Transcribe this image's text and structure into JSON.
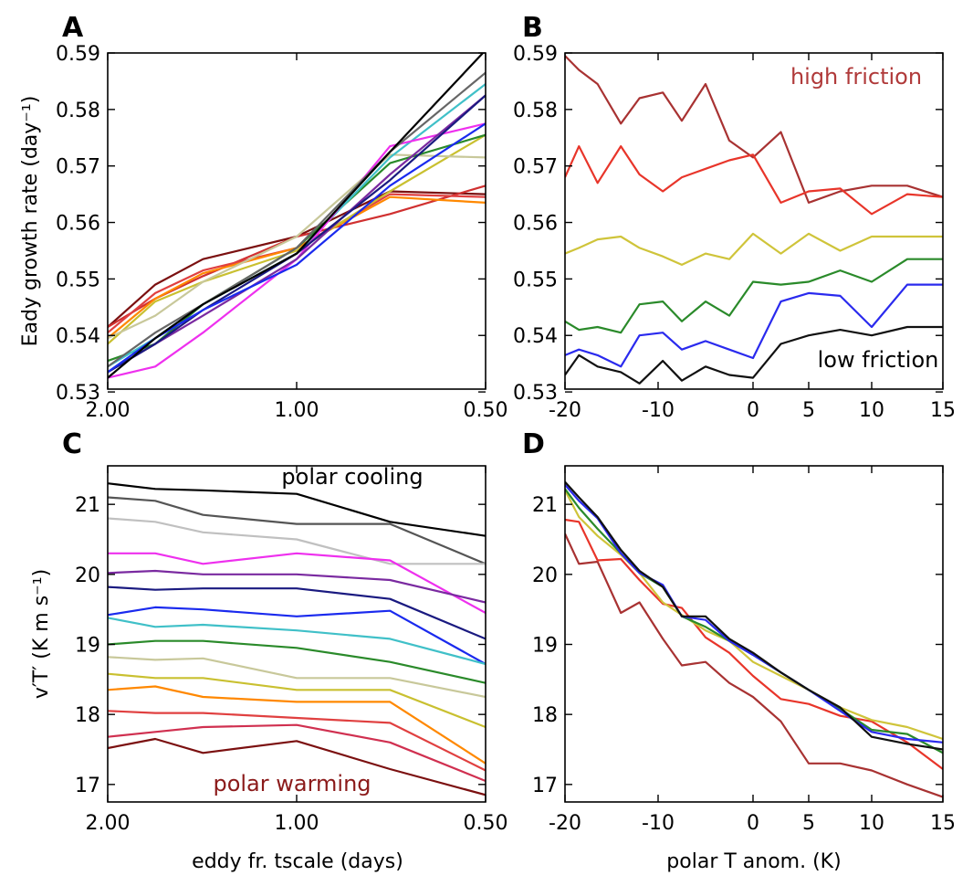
{
  "chart_data": [
    {
      "panel_label": "A",
      "type": "line",
      "x_tick_labels": [
        "2.00",
        "1.00",
        "0.50"
      ],
      "y_tick_labels": [
        "0.53",
        "0.54",
        "0.55",
        "0.56",
        "0.57",
        "0.58",
        "0.59"
      ],
      "xlabel": "",
      "ylabel": "Eady growth rate (day⁻¹)",
      "x_scale": "log",
      "xlim": [
        2.0,
        0.5
      ],
      "ylim": [
        0.5305,
        0.59
      ],
      "x": [
        2.0,
        1.68,
        1.41,
        1.0,
        0.71,
        0.5
      ],
      "annotations": [],
      "series": [
        {
          "color": "#7b1010",
          "values": [
            0.5415,
            0.549,
            0.5535,
            0.5575,
            0.5655,
            0.565
          ]
        },
        {
          "color": "#d03030",
          "values": [
            0.5415,
            0.5465,
            0.5505,
            0.5575,
            0.5615,
            0.5665
          ]
        },
        {
          "color": "#e04040",
          "values": [
            0.5405,
            0.5475,
            0.5515,
            0.5555,
            0.565,
            0.5645
          ]
        },
        {
          "color": "#ff8800",
          "values": [
            0.5395,
            0.5465,
            0.551,
            0.5555,
            0.5645,
            0.5635
          ]
        },
        {
          "color": "#c9c030",
          "values": [
            0.5385,
            0.546,
            0.5495,
            0.555,
            0.5655,
            0.5755
          ]
        },
        {
          "color": "#c8c89a",
          "values": [
            0.5395,
            0.5435,
            0.5495,
            0.5575,
            0.572,
            0.5715
          ]
        },
        {
          "color": "#2a8a2a",
          "values": [
            0.5355,
            0.5385,
            0.5455,
            0.5555,
            0.5705,
            0.5755
          ]
        },
        {
          "color": "#40c0c8",
          "values": [
            0.5345,
            0.5395,
            0.5455,
            0.5545,
            0.5715,
            0.5845
          ]
        },
        {
          "color": "#ee30ee",
          "values": [
            0.5325,
            0.5345,
            0.5405,
            0.5535,
            0.5735,
            0.5775
          ]
        },
        {
          "color": "#7a2aa0",
          "values": [
            0.5335,
            0.5385,
            0.5435,
            0.5535,
            0.5685,
            0.5825
          ]
        },
        {
          "color": "#1a1a80",
          "values": [
            0.5335,
            0.5385,
            0.5445,
            0.5545,
            0.5675,
            0.5825
          ]
        },
        {
          "color": "#1a2aee",
          "values": [
            0.5335,
            0.5395,
            0.5445,
            0.5525,
            0.5665,
            0.5775
          ]
        },
        {
          "color": "#666666",
          "values": [
            0.5345,
            0.5405,
            0.5455,
            0.5555,
            0.5725,
            0.5865
          ]
        },
        {
          "color": "#000000",
          "values": [
            0.5325,
            0.5395,
            0.5455,
            0.5545,
            0.5725,
            0.5905
          ]
        }
      ]
    },
    {
      "panel_label": "B",
      "type": "line",
      "x_tick_labels": [
        "-20",
        "-10",
        "0",
        "5",
        "10",
        "15"
      ],
      "y_tick_labels": [
        "0.53",
        "0.54",
        "0.55",
        "0.56",
        "0.57",
        "0.58",
        "0.59"
      ],
      "xlabel": "",
      "ylabel": "",
      "xlim": [
        -20,
        15
      ],
      "ylim": [
        0.5305,
        0.59
      ],
      "x": [
        -20,
        -18.5,
        -16.5,
        -14,
        -12,
        -9.5,
        -7.5,
        -5,
        -2.5,
        0,
        2.5,
        5,
        7.5,
        10,
        12.5,
        15
      ],
      "annotations": [
        {
          "text": "high friction",
          "color": "#b03a3a"
        },
        {
          "text": "low friction",
          "color": "#000000"
        }
      ],
      "series": [
        {
          "color": "#a83232",
          "values": [
            0.5895,
            0.587,
            0.5845,
            0.5775,
            0.582,
            0.583,
            0.578,
            0.5845,
            0.5745,
            0.5715,
            0.576,
            0.5635,
            0.5655,
            0.5665,
            0.5665,
            0.5645
          ]
        },
        {
          "color": "#e8352a",
          "values": [
            0.568,
            0.5735,
            0.567,
            0.5735,
            0.5685,
            0.5655,
            0.568,
            0.5695,
            0.571,
            0.572,
            0.5635,
            0.5655,
            0.566,
            0.5615,
            0.565,
            0.5645
          ]
        },
        {
          "color": "#cfc43a",
          "values": [
            0.5545,
            0.5555,
            0.557,
            0.5575,
            0.5555,
            0.554,
            0.5525,
            0.5545,
            0.5535,
            0.558,
            0.5545,
            0.558,
            0.555,
            0.5575,
            0.5575,
            0.5575
          ]
        },
        {
          "color": "#2a8a2a",
          "values": [
            0.5425,
            0.541,
            0.5415,
            0.5405,
            0.5455,
            0.546,
            0.5425,
            0.546,
            0.5435,
            0.5495,
            0.549,
            0.5495,
            0.5515,
            0.5495,
            0.5535,
            0.5535
          ]
        },
        {
          "color": "#2a2aee",
          "values": [
            0.5365,
            0.5375,
            0.5365,
            0.5345,
            0.54,
            0.5405,
            0.5375,
            0.539,
            0.5375,
            0.536,
            0.546,
            0.5475,
            0.547,
            0.5415,
            0.549,
            0.549
          ]
        },
        {
          "color": "#111111",
          "values": [
            0.533,
            0.5365,
            0.5345,
            0.5335,
            0.5315,
            0.5355,
            0.532,
            0.5345,
            0.533,
            0.5325,
            0.5385,
            0.54,
            0.541,
            0.54,
            0.5415,
            0.5415
          ]
        }
      ]
    },
    {
      "panel_label": "C",
      "type": "line",
      "x_tick_labels": [
        "2.00",
        "1.00",
        "0.50"
      ],
      "y_tick_labels": [
        "17",
        "18",
        "19",
        "20",
        "21"
      ],
      "xlabel": "eddy fr. tscale (days)",
      "ylabel": "v′T′ (K m s⁻¹)",
      "x_scale": "log",
      "xlim": [
        2.0,
        0.5
      ],
      "ylim": [
        16.75,
        21.55
      ],
      "x": [
        2.0,
        1.68,
        1.41,
        1.0,
        0.71,
        0.5
      ],
      "annotations": [
        {
          "text": "polar cooling",
          "color": "#000000"
        },
        {
          "text": "polar warming",
          "color": "#8b1a1a"
        }
      ],
      "series": [
        {
          "color": "#000000",
          "values": [
            21.3,
            21.22,
            21.2,
            21.15,
            20.75,
            20.55
          ]
        },
        {
          "color": "#555555",
          "values": [
            21.1,
            21.05,
            20.85,
            20.72,
            20.72,
            20.15
          ]
        },
        {
          "color": "#c0c0c0",
          "values": [
            20.8,
            20.75,
            20.6,
            20.5,
            20.15,
            20.15
          ]
        },
        {
          "color": "#ee30ee",
          "values": [
            20.3,
            20.3,
            20.15,
            20.3,
            20.2,
            19.45
          ]
        },
        {
          "color": "#7a2aa0",
          "values": [
            20.02,
            20.05,
            20.0,
            20.0,
            19.92,
            19.6
          ]
        },
        {
          "color": "#1a1a80",
          "values": [
            19.82,
            19.78,
            19.8,
            19.8,
            19.65,
            19.08
          ]
        },
        {
          "color": "#1a2aee",
          "values": [
            19.42,
            19.53,
            19.5,
            19.4,
            19.48,
            18.72
          ]
        },
        {
          "color": "#40c0c8",
          "values": [
            19.38,
            19.25,
            19.28,
            19.2,
            19.08,
            18.72
          ]
        },
        {
          "color": "#2a8a2a",
          "values": [
            19.0,
            19.05,
            19.05,
            18.95,
            18.75,
            18.45
          ]
        },
        {
          "color": "#c8c89a",
          "values": [
            18.82,
            18.78,
            18.8,
            18.52,
            18.52,
            18.25
          ]
        },
        {
          "color": "#c9c030",
          "values": [
            18.58,
            18.52,
            18.52,
            18.35,
            18.35,
            17.82
          ]
        },
        {
          "color": "#ff8800",
          "values": [
            18.35,
            18.4,
            18.25,
            18.18,
            18.18,
            17.3
          ]
        },
        {
          "color": "#e04040",
          "values": [
            18.05,
            18.02,
            18.02,
            17.95,
            17.88,
            17.2
          ]
        },
        {
          "color": "#d03050",
          "values": [
            17.68,
            17.75,
            17.82,
            17.85,
            17.6,
            17.05
          ]
        },
        {
          "color": "#7b1010",
          "values": [
            17.52,
            17.65,
            17.45,
            17.62,
            17.22,
            16.85
          ]
        }
      ]
    },
    {
      "panel_label": "D",
      "type": "line",
      "x_tick_labels": [
        "-20",
        "-10",
        "0",
        "5",
        "10",
        "15"
      ],
      "y_tick_labels": [
        "17",
        "18",
        "19",
        "20",
        "21"
      ],
      "xlabel": "polar T anom. (K)",
      "ylabel": "",
      "xlim": [
        -20,
        15
      ],
      "ylim": [
        16.75,
        21.55
      ],
      "x": [
        -20,
        -18.5,
        -16.5,
        -14,
        -12,
        -9.5,
        -7.5,
        -5,
        -2.5,
        0,
        2.5,
        5,
        7.5,
        10,
        12.5,
        15
      ],
      "annotations": [],
      "series": [
        {
          "color": "#a83232",
          "values": [
            20.58,
            20.15,
            20.18,
            19.45,
            19.6,
            19.08,
            18.7,
            18.75,
            18.45,
            18.25,
            17.9,
            17.3,
            17.3,
            17.2,
            17.0,
            16.82
          ]
        },
        {
          "color": "#e8352a",
          "values": [
            20.78,
            20.75,
            20.2,
            20.22,
            19.92,
            19.58,
            19.52,
            19.1,
            18.88,
            18.55,
            18.22,
            18.15,
            17.98,
            17.9,
            17.6,
            17.22
          ]
        },
        {
          "color": "#cfc43a",
          "values": [
            21.2,
            20.82,
            20.55,
            20.28,
            20.02,
            19.6,
            19.42,
            19.2,
            19.05,
            18.75,
            18.55,
            18.35,
            18.1,
            17.92,
            17.82,
            17.65
          ]
        },
        {
          "color": "#2a8a2a",
          "values": [
            21.22,
            20.95,
            20.65,
            20.3,
            20.02,
            19.82,
            19.4,
            19.25,
            19.05,
            18.85,
            18.6,
            18.35,
            18.08,
            17.78,
            17.72,
            17.45
          ]
        },
        {
          "color": "#2a2aee",
          "values": [
            21.28,
            21.05,
            20.8,
            20.3,
            20.02,
            19.85,
            19.4,
            19.35,
            19.05,
            18.85,
            18.6,
            18.35,
            18.05,
            17.75,
            17.65,
            17.6
          ]
        },
        {
          "color": "#111111",
          "values": [
            21.32,
            21.1,
            20.82,
            20.35,
            20.05,
            19.82,
            19.4,
            19.4,
            19.08,
            18.88,
            18.6,
            18.35,
            18.1,
            17.68,
            17.58,
            17.5
          ]
        }
      ]
    }
  ]
}
